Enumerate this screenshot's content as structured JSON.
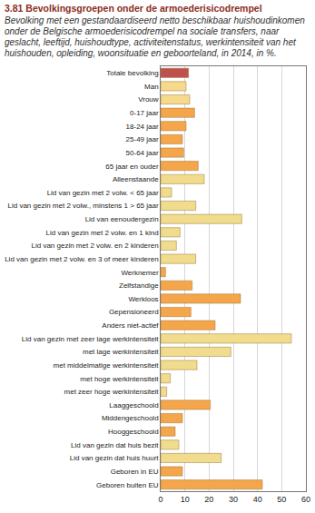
{
  "chart_data": {
    "type": "bar",
    "orientation": "horizontal",
    "title": "3.81 Bevolkingsgroepen onder de armoederisicodrempel",
    "subtitle": "Bevolking met een gestandaardiseerd netto beschikbaar huishoudinkomen onder de Belgische armoederisicodrempel na sociale transfers, naar geslacht, leeftijd, huishoudtype, activiteitenstatus, werkintensiteit van het huishouden, opleiding, woonsituatie en geboorteland, in 2014, in %.",
    "categories": [
      "Totale bevolking",
      "Man",
      "Vrouw",
      "0-17 jaar",
      "18-24 jaar",
      "25-49 jaar",
      "50-64 jaar",
      "65 jaar en ouder",
      "Alleenstaande",
      "Lid van gezin met 2 volw. < 65 jaar",
      "Lid van gezin met 2 volw., minstens 1 > 65 jaar",
      "Lid van eenoudergezin",
      "Lid van gezin met 2 volw. en 1 kind",
      "Lid van gezin met 2 volw. en 2 kinderen",
      "Lid van gezin met 2 volw. en 3 of meer kinderen",
      "Werknemer",
      "Zelfstandige",
      "Werkloos",
      "Gepensioneerd",
      "Anders niet-actief",
      "Lid van gezin met zeer lage werkintensiteit",
      "met lage werkintensiteit",
      "met middelmatige werkintensiteit",
      "met hoge werkintensiteit",
      "met zeer hoge werkintensiteit",
      "Laaggeschoold",
      "Middengeschoold",
      "Hooggeschoold",
      "Lid van gezin dat huis bezit",
      "Lid van gezin dat huis huurt",
      "Geboren in EU",
      "Geboren buiten EU"
    ],
    "values": [
      11.5,
      10.5,
      12,
      14,
      10.5,
      9,
      9.5,
      15.5,
      18,
      4.5,
      14.5,
      33.5,
      8,
      6.5,
      14.5,
      2,
      13,
      33,
      12.5,
      22.5,
      54,
      29,
      15,
      4,
      2.5,
      20.5,
      9,
      6,
      7.5,
      25,
      9,
      42
    ],
    "colors": [
      "#c0504d",
      "#f7d98b",
      "#f7d98b",
      "#f5a54a",
      "#f5a54a",
      "#f5a54a",
      "#f5a54a",
      "#f5a54a",
      "#f0dc8c",
      "#f0dc8c",
      "#f0dc8c",
      "#f0dc8c",
      "#f0dc8c",
      "#f0dc8c",
      "#f0dc8c",
      "#f5a54a",
      "#f5a54a",
      "#f5a54a",
      "#f5a54a",
      "#f5a54a",
      "#f0dc8c",
      "#f0dc8c",
      "#f0dc8c",
      "#f0dc8c",
      "#f0dc8c",
      "#f5a54a",
      "#f5a54a",
      "#f5a54a",
      "#f0dc8c",
      "#f0dc8c",
      "#f5a54a",
      "#f5a54a"
    ],
    "xlim": [
      0,
      60
    ],
    "xticks": [
      0,
      10,
      20,
      30,
      40,
      50,
      60
    ],
    "grid": true
  }
}
